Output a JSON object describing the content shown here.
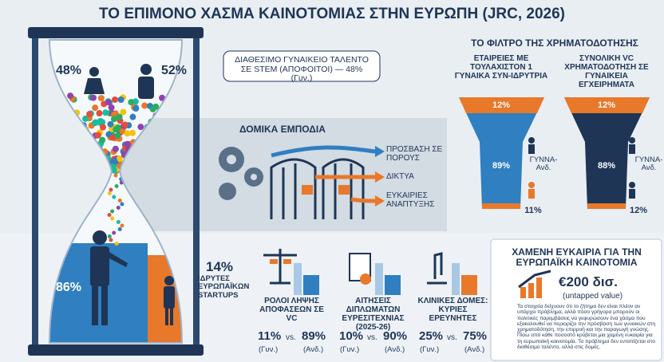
{
  "title": "ΤΟ ΕΠΙΜΟΝΟ ΧΑΣΜΑ ΚΑΙΝΟΤΟΜΙΑΣ ΣΤΗΝ ΕΥΡΩΠΗ (JRC, 2026)",
  "hourglass": {
    "top_left": "48%",
    "top_right": "52%",
    "bottom_left": "86%",
    "callout": "ΔΙΑΘΕΣΙΜΟ ΓΥΝΑΙΚΕΙΟ ΤΑΛΕΝΤΟ ΣΕ STEM (ΑΠΟΦΟΙΤΟΙ) — 48% (Γυν.)"
  },
  "startups": {
    "value": "14%",
    "label": "ΙΔΡΥΤΕΣ ΕΥΡΩΠΑΪΚΩΝ STARTUPS"
  },
  "barriers": {
    "title": "ΔΟΜΙΚΑ ΕΜΠΟΔΙΑ",
    "items": [
      "ΠΡΟΣΒΑΣΗ ΣΕ ΠΟΡΟΥΣ",
      "ΔΙΚΤΥΑ",
      "ΕΥΚΑΙΡΙΕΣ ΑΝΑΠΤΥΞΗΣ"
    ]
  },
  "funding": {
    "title": "ΤΟ ΦΙΛΤΡΟ ΤΗΣ ΧΡΗΜΑΤΟΔΟΤΗΣΗΣ",
    "funnels": [
      {
        "heading": "ΕΤΑΙΡΕΙΕΣ ΜΕ ΤΟΥΛΑΧΙΣΤΟΝ 1 ΓΥΝΑΙΚΑ ΣΥΝ-ΙΔΡΥΤΡΙΑ",
        "top": "12%",
        "middle": "89%",
        "legend": "ΓΥΝΝΑ-Ανδ.",
        "bottom": "11%"
      },
      {
        "heading": "ΣΥΝΟΛΙΚΗ VC ΧΡΗΜΑΤΟΔΟΤΗΣΗ ΣΕ ΓΥΝΑΙΚΕΙΑ ΕΓΧΕΙΡΗΜΑΤΑ",
        "top": "12%",
        "middle": "88%",
        "legend": "ΓΥΝΝΑ-Ανδ.",
        "bottom": "12%"
      }
    ]
  },
  "cards": [
    {
      "label": "ΡΟΛΟΙ ΛΗΨΗΣ ΑΠΟΦΑΣΕΩΝ ΣΕ VC",
      "women": "11%",
      "vs": "vs.",
      "men": "89%",
      "women_note": "(Γυν.)",
      "men_note": "(Ανδ.)"
    },
    {
      "label": "ΑΙΤΗΣΕΙΣ ΔΙΠΛΩΜΑΤΩΝ ΕΥΡΕΣΙΤΕΧΝΙΑΣ (2025-26)",
      "women": "10%",
      "vs": "vs.",
      "men": "90%",
      "women_note": "(Γυν.)",
      "men_note": "(Ανδ.)"
    },
    {
      "label": "ΚΛΙΝΙΚΕΣ ΔΟΜΕΣ: ΚΥΡΙΕΣ ΕΡΕΥΝΗΤΕΣ",
      "women": "25%",
      "vs": "vs.",
      "men": "75%",
      "women_note": "(Γυν.)",
      "men_note": "(Ανδ.)"
    }
  ],
  "opportunity": {
    "title": "ΧΑΜΕΝΗ ΕΥΚΑΙΡΙΑ ΓΙΑ ΤΗΝ ΕΥΡΩΠΑΪΚΗ ΚΑΙΝΟΤΟΜΙΑ",
    "amount": "€200 δισ.",
    "note": "(untapped value)",
    "body": "Τα στοιχεία δείχνουν ότι το ζήτημα δεν είναι πλέον αν υπάρχει πρόβλημα, αλλά πόσο γρήγορα μπορούν οι πολιτικές παρεμβάσεις να γεφυρώσουν ένα χάσμα που εξακολουθεί να περιορίζει την πρόσβαση των γυναικών στη χρηματοδότηση, την επιρροή και την παραγωγή γνώσης. Πίσω από κάθε ποσοστό κρύβεται μια χαμένη ευκαιρία για τη ευρωπαϊκή καινοτομία. Το πρόβλημα δεν εντοπίζεται στο διαθέσιμο ταλέντο, αλλά στις δομές."
  }
}
